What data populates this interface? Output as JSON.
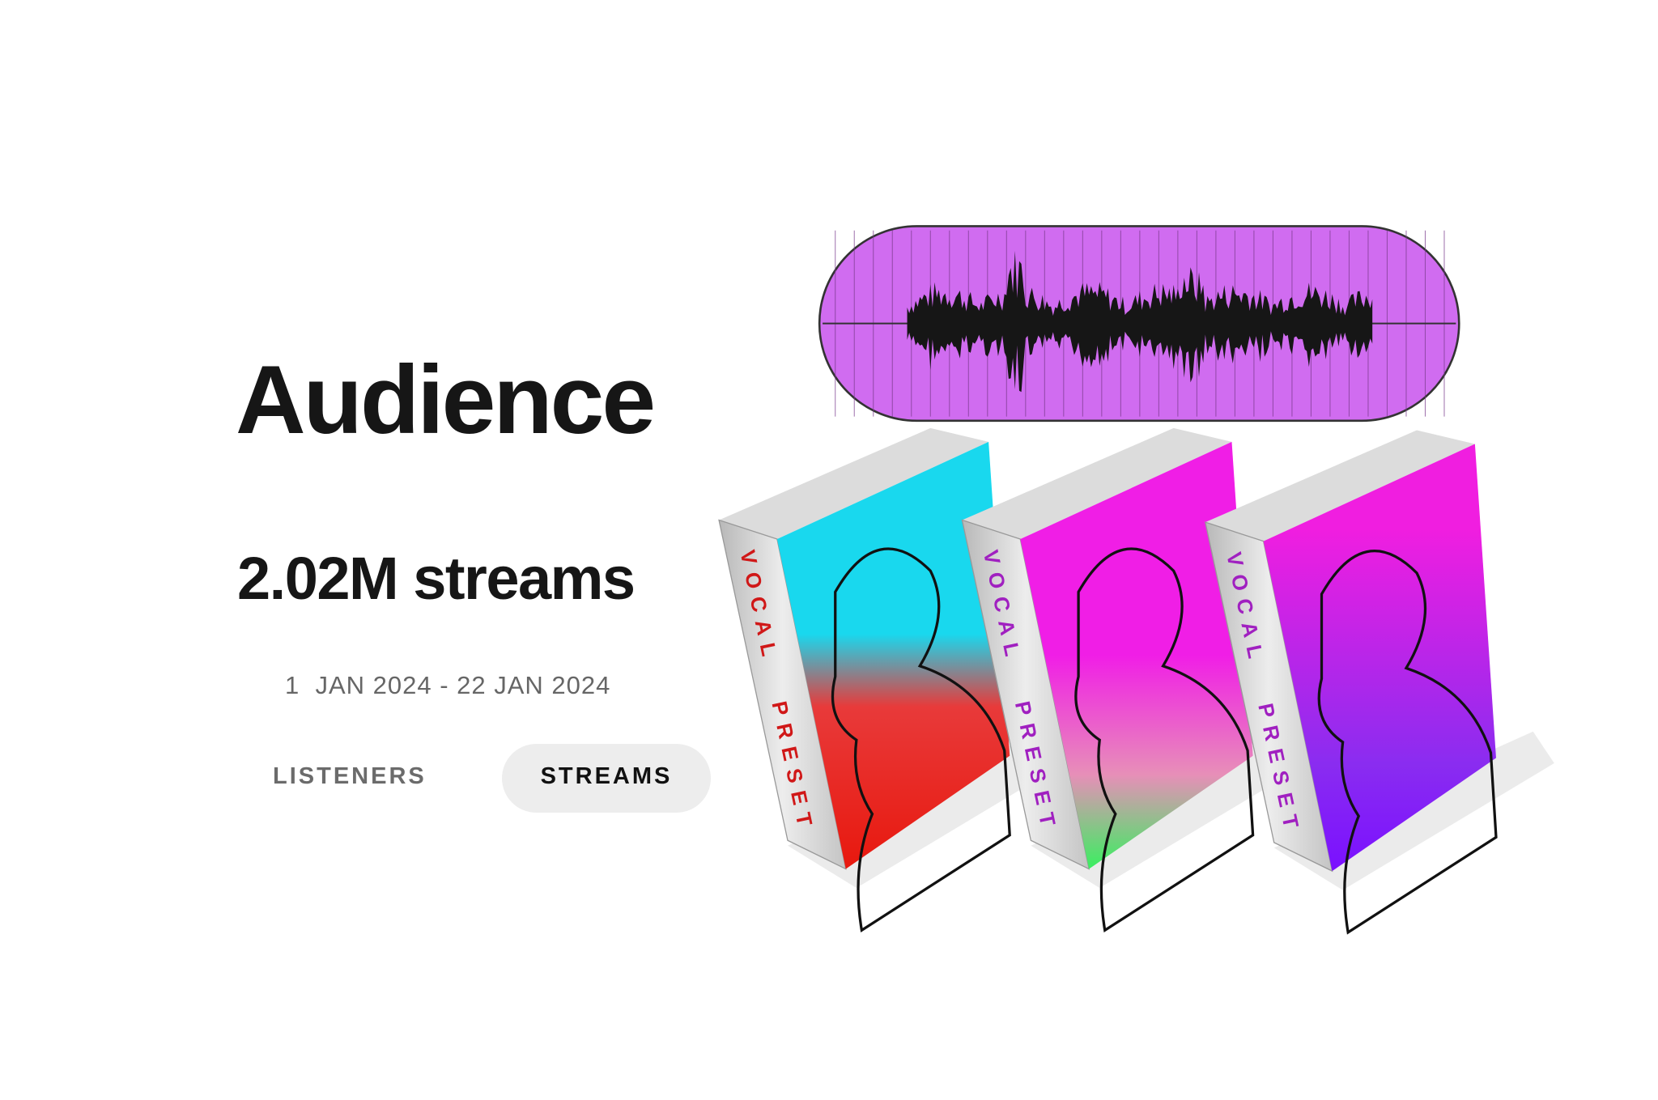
{
  "header": {
    "title": "Audience",
    "metric": "2.02M streams",
    "date_range": "1  JAN 2024 - 22 JAN 2024"
  },
  "tabs": [
    {
      "label": "LISTENERS"
    },
    {
      "label": "STREAMS"
    }
  ],
  "boxes": [
    {
      "spine_top": "VOCAL",
      "spine_bottom": "PRESET"
    },
    {
      "spine_top": "VOCAL",
      "spine_bottom": "PRESET"
    },
    {
      "spine_top": "VOCAL",
      "spine_bottom": "PRESET"
    }
  ]
}
